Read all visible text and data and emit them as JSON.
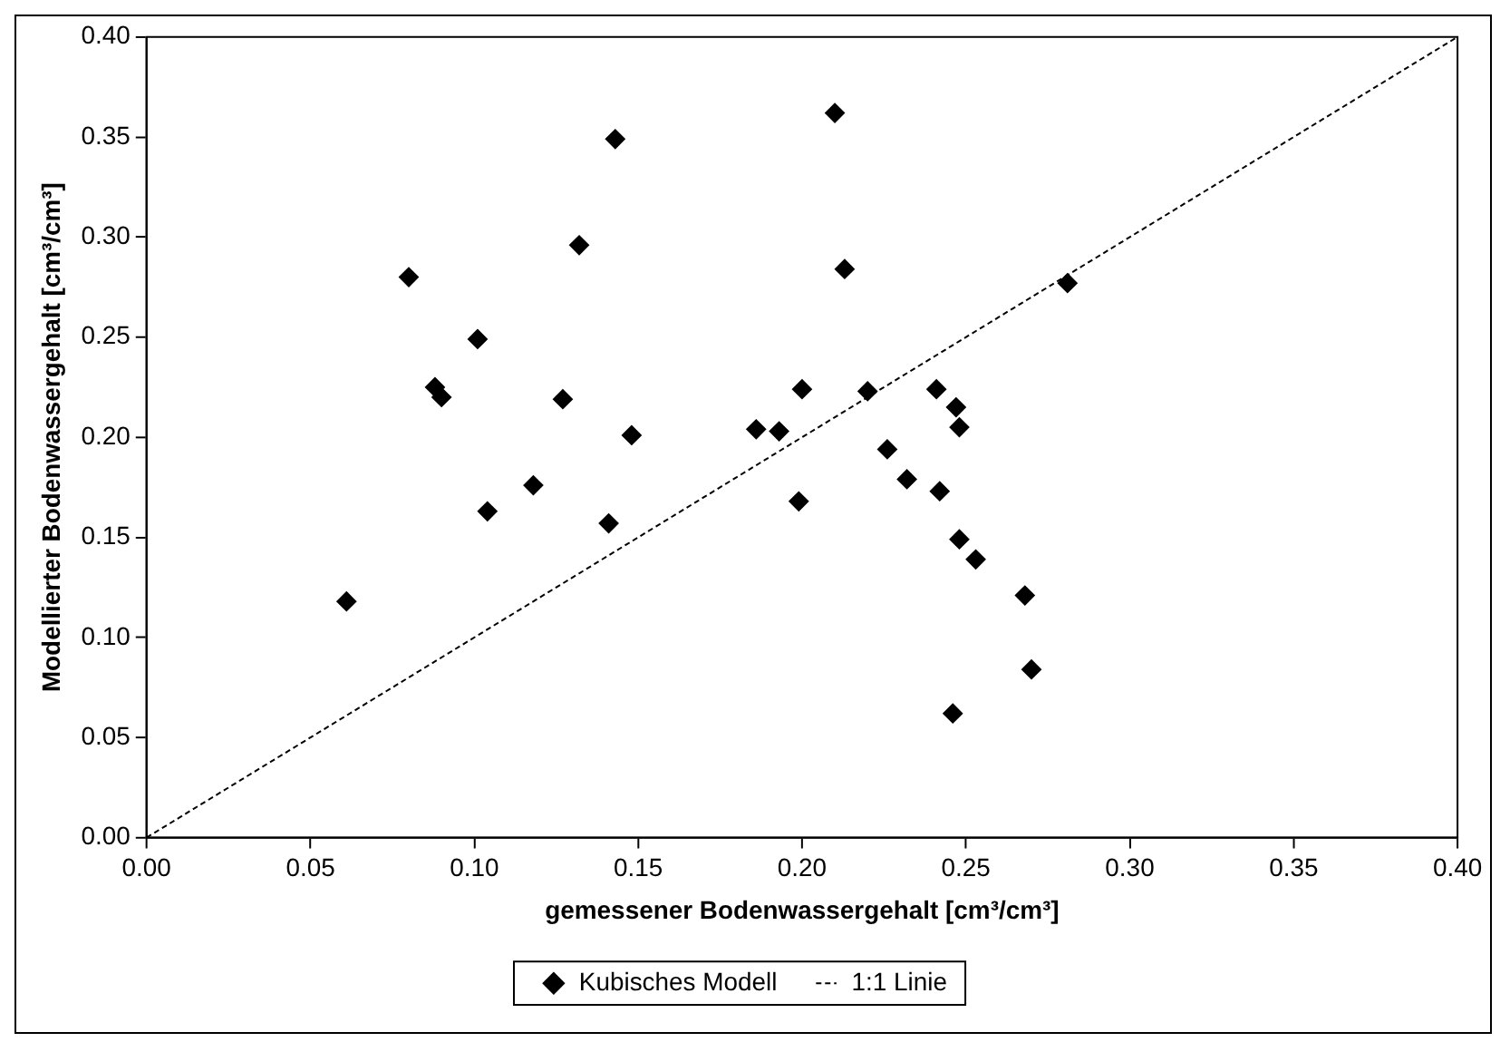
{
  "chart_data": {
    "type": "scatter",
    "xlabel": "gemessener Bodenwassergehalt [cm³/cm³]",
    "ylabel": "Modellierter Bodenwassergehalt [cm³/cm³]",
    "xlim": [
      0,
      0.4
    ],
    "ylim": [
      0,
      0.4
    ],
    "xticks": [
      {
        "value": 0,
        "label": "0.00"
      },
      {
        "value": 0.05,
        "label": "0.05"
      },
      {
        "value": 0.1,
        "label": "0.10"
      },
      {
        "value": 0.15,
        "label": "0.15"
      },
      {
        "value": 0.2,
        "label": "0.20"
      },
      {
        "value": 0.25,
        "label": "0.25"
      },
      {
        "value": 0.3,
        "label": "0.30"
      },
      {
        "value": 0.35,
        "label": "0.35"
      },
      {
        "value": 0.4,
        "label": "0.40"
      }
    ],
    "yticks": [
      {
        "value": 0,
        "label": "0.00"
      },
      {
        "value": 0.05,
        "label": "0.05"
      },
      {
        "value": 0.1,
        "label": "0.10"
      },
      {
        "value": 0.15,
        "label": "0.15"
      },
      {
        "value": 0.2,
        "label": "0.20"
      },
      {
        "value": 0.25,
        "label": "0.25"
      },
      {
        "value": 0.3,
        "label": "0.30"
      },
      {
        "value": 0.35,
        "label": "0.35"
      },
      {
        "value": 0.4,
        "label": "0.40"
      }
    ],
    "grid": false,
    "legend": "bottom",
    "series": [
      {
        "name": "Kubisches Modell",
        "type": "scatter",
        "color": "#000000",
        "marker": "diamond",
        "x": [
          0.061,
          0.08,
          0.088,
          0.09,
          0.101,
          0.104,
          0.118,
          0.127,
          0.132,
          0.141,
          0.143,
          0.148,
          0.186,
          0.193,
          0.199,
          0.2,
          0.21,
          0.213,
          0.22,
          0.226,
          0.232,
          0.241,
          0.242,
          0.247,
          0.248,
          0.248,
          0.253,
          0.268,
          0.27,
          0.246,
          0.281
        ],
        "values": [
          0.118,
          0.28,
          0.225,
          0.22,
          0.249,
          0.163,
          0.176,
          0.219,
          0.296,
          0.157,
          0.349,
          0.201,
          0.204,
          0.203,
          0.168,
          0.224,
          0.362,
          0.284,
          0.223,
          0.194,
          0.179,
          0.224,
          0.173,
          0.215,
          0.205,
          0.149,
          0.139,
          0.121,
          0.084,
          0.062,
          0.277
        ]
      },
      {
        "name": "1:1 Linie",
        "type": "line",
        "color": "#000000",
        "marker": "none",
        "line_style": "dashed",
        "x": [
          0,
          0.4
        ],
        "values": [
          0,
          0.4
        ]
      }
    ]
  }
}
